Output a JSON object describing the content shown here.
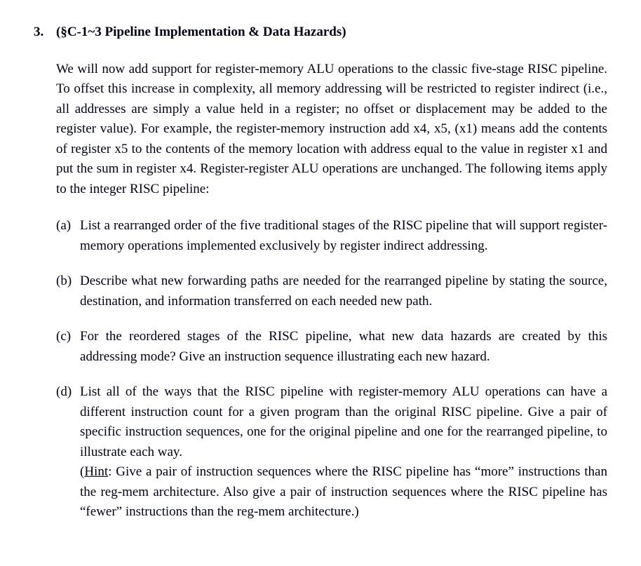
{
  "question_number": "3.",
  "title": "(§C-1~3 Pipeline Implementation & Data Hazards)",
  "intro": "We will now add support for register-memory ALU operations to the classic five-stage RISC pipeline. To offset this increase in complexity, all memory addressing will be restricted to register indirect (i.e., all addresses are simply a value held in a register; no offset or displacement may be added to the register value). For example, the register-memory instruction add x4, x5, (x1) means add the contents of register x5 to the contents of the memory location with address equal to the value in register x1 and put the sum in register x4. Register-register ALU operations are unchanged. The following items apply to the integer RISC pipeline:",
  "items": {
    "a": {
      "label": "(a)",
      "text": "List a rearranged order of the five traditional stages of the RISC pipeline that will support register-memory operations implemented exclusively by register indirect addressing."
    },
    "b": {
      "label": "(b)",
      "text": "Describe what new forwarding paths are needed for the rearranged pipeline by stating the source, destination, and information transferred on each needed new path."
    },
    "c": {
      "label": "(c)",
      "text": "For the reordered stages of the RISC pipeline, what new data hazards are created by this addressing mode? Give an instruction sequence illustrating each new hazard."
    },
    "d": {
      "label": "(d)",
      "text1": "List all of the ways that the RISC pipeline with register-memory ALU operations can have a different instruction count for a given program than the original RISC pipeline. Give a pair of specific instruction sequences, one for the original pipeline and one for the rearranged pipeline, to illustrate each way.",
      "hint_open": "(",
      "hint_label": "Hint",
      "hint_rest": ": Give a pair of instruction sequences where the RISC pipeline has “more” instructions than the reg-mem architecture. Also give a pair of instruction sequences where the RISC pipeline has “fewer” instructions than the reg-mem architecture.)"
    }
  }
}
